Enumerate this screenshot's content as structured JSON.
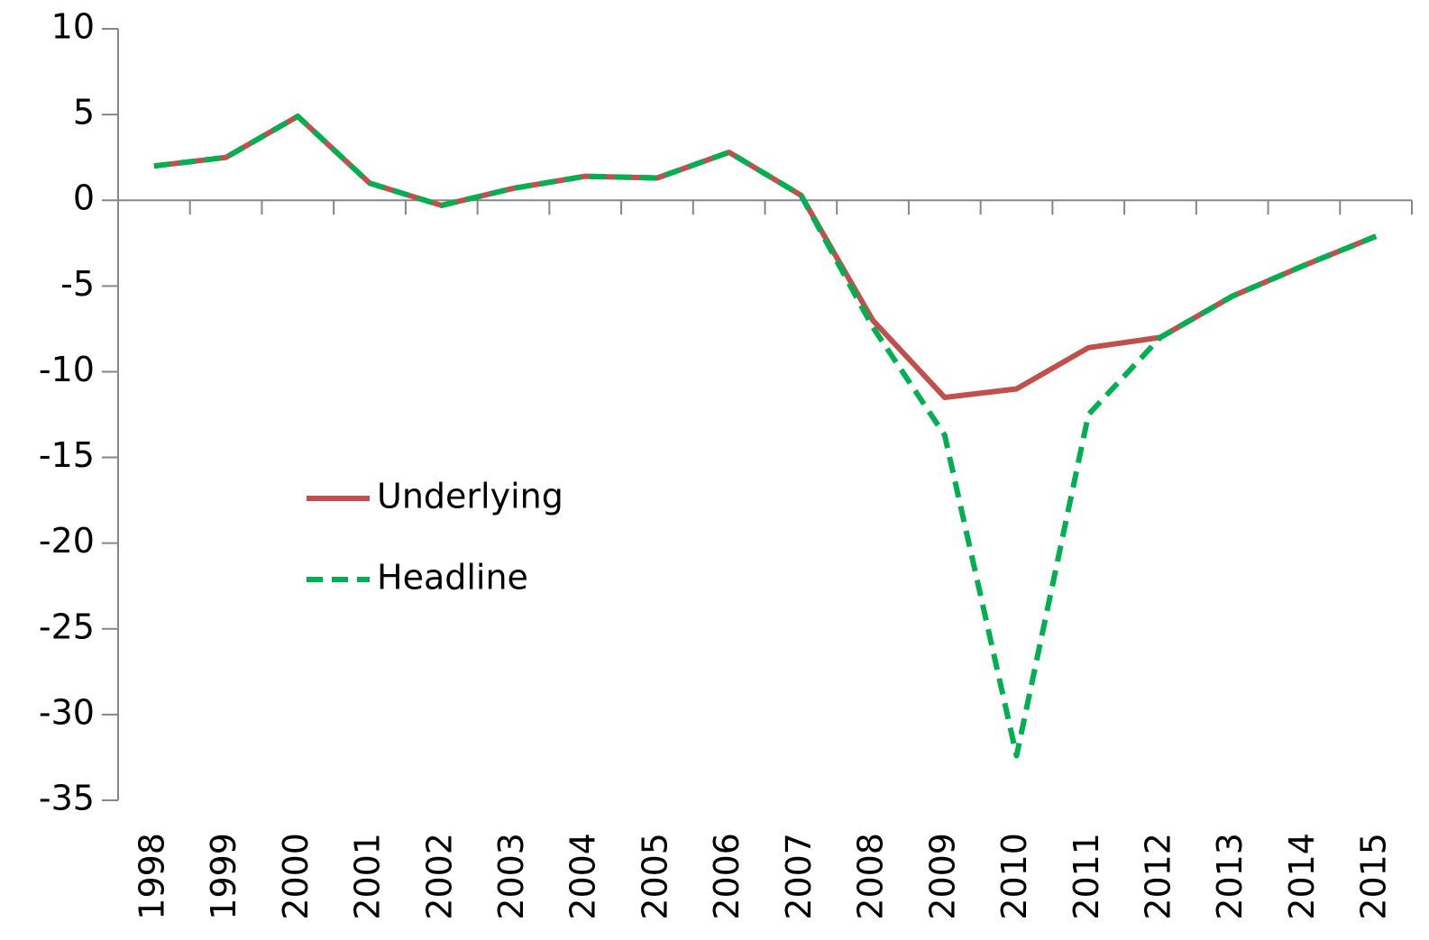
{
  "chart_data": {
    "type": "line",
    "categories": [
      "1998",
      "1999",
      "2000",
      "2001",
      "2002",
      "2003",
      "2004",
      "2005",
      "2006",
      "2007",
      "2008",
      "2009",
      "2010",
      "2011",
      "2012",
      "2013",
      "2014",
      "2015"
    ],
    "series": [
      {
        "name": "Underlying",
        "color": "#c0504d",
        "dash": false,
        "values": [
          2.0,
          2.5,
          4.9,
          1.0,
          -0.3,
          0.7,
          1.4,
          1.3,
          2.8,
          0.3,
          -7.0,
          -11.5,
          -11.0,
          -8.6,
          -8.0,
          -5.6,
          -3.8,
          -2.1
        ]
      },
      {
        "name": "Headline",
        "color": "#00b050",
        "dash": true,
        "values": [
          2.0,
          2.5,
          4.9,
          1.0,
          -0.3,
          0.7,
          1.4,
          1.3,
          2.8,
          0.3,
          -7.4,
          -13.7,
          -32.4,
          -12.5,
          -8.0,
          -5.6,
          -3.8,
          -2.1
        ]
      }
    ],
    "ylim": [
      -35,
      10
    ],
    "yticks": [
      -35,
      -30,
      -25,
      -20,
      -15,
      -10,
      -5,
      0,
      5,
      10
    ],
    "grid": false,
    "legend": "left"
  }
}
